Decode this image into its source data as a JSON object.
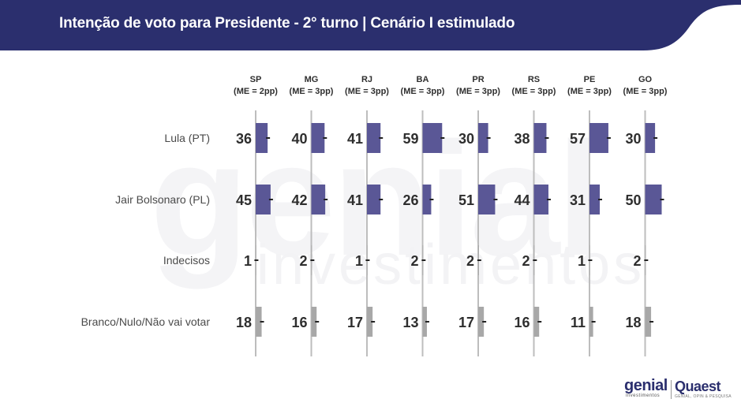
{
  "title": "Intenção de voto para Presidente - 2° turno | Cenário I estimulado",
  "watermark": {
    "main": "genial",
    "sub": "investimentos"
  },
  "footer": {
    "logo1_main": "genial",
    "logo1_sub": "investimentos",
    "logo2_main": "Quaest",
    "logo2_sub": "GENIAL, OPIN & PESQUISA"
  },
  "colors": {
    "header": "#2b2f6e",
    "candidate_bar": "#5a5796",
    "other_bar": "#a8a8a8",
    "axis": "#bdbdbd",
    "value_text": "#2e2e2e"
  },
  "chart_data": {
    "type": "bar",
    "layout": "small-multiples-horizontal",
    "categories": [
      "Lula (PT)",
      "Jair Bolsonaro (PL)",
      "Indecisos",
      "Branco/Nulo/Não vai votar"
    ],
    "panels": [
      {
        "state": "SP",
        "me": "(ME = 2pp)",
        "values": [
          36,
          45,
          1,
          18
        ]
      },
      {
        "state": "MG",
        "me": "(ME = 3pp)",
        "values": [
          40,
          42,
          2,
          16
        ]
      },
      {
        "state": "RJ",
        "me": "(ME = 3pp)",
        "values": [
          41,
          41,
          1,
          17
        ]
      },
      {
        "state": "BA",
        "me": "(ME = 3pp)",
        "values": [
          59,
          26,
          2,
          13
        ]
      },
      {
        "state": "PR",
        "me": "(ME = 3pp)",
        "values": [
          30,
          51,
          2,
          17
        ]
      },
      {
        "state": "RS",
        "me": "(ME = 3pp)",
        "values": [
          38,
          44,
          2,
          16
        ]
      },
      {
        "state": "PE",
        "me": "(ME = 3pp)",
        "values": [
          57,
          31,
          1,
          11
        ]
      },
      {
        "state": "GO",
        "me": "(ME = 3pp)",
        "values": [
          30,
          50,
          2,
          18
        ]
      }
    ],
    "error_bar_shown": true
  }
}
